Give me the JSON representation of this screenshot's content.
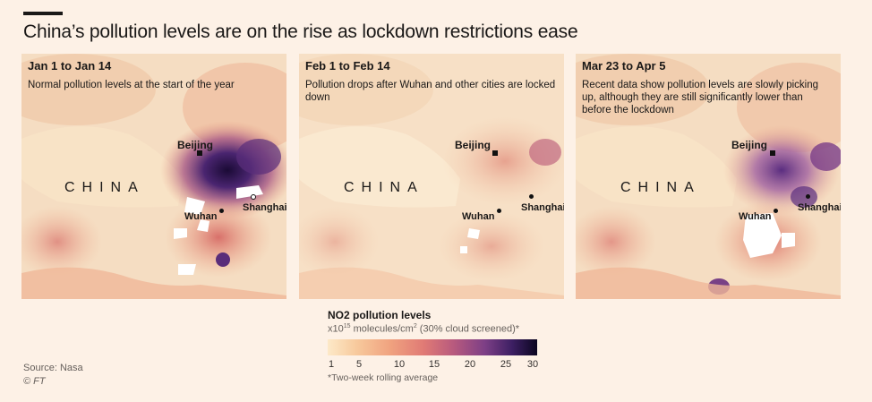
{
  "title": "China’s pollution levels are on the rise as lockdown restrictions ease",
  "panels": [
    {
      "title": "Jan 1 to Jan 14",
      "description": "Normal pollution levels at the start of the year"
    },
    {
      "title": "Feb 1 to Feb 14",
      "description": "Pollution drops after Wuhan and other cities are locked down"
    },
    {
      "title": "Mar 23 to Apr 5",
      "description": "Recent data show pollution levels are slowly picking up, although they are still significantly lower than before the lockdown"
    }
  ],
  "labels": {
    "country": "CHINA",
    "beijing": "Beijing",
    "wuhan": "Wuhan",
    "shanghai": "Shanghai"
  },
  "legend": {
    "title": "NO2 pollution levels",
    "unit_prefix": "x10",
    "unit_exp": "15",
    "unit_mid": " molecules/cm",
    "unit_exp2": "2",
    "unit_suffix": " (30% cloud screened)*",
    "ticks": [
      "1",
      "5",
      "10",
      "15",
      "20",
      "25",
      "30"
    ],
    "note": "*Two-week rolling average",
    "colors": [
      "#fde9c8",
      "#f7c99c",
      "#f0a27f",
      "#e07a75",
      "#b85a7e",
      "#7d3f86",
      "#3d1f63",
      "#0b0620"
    ]
  },
  "source": "Source: Nasa",
  "copyright": "© FT"
}
